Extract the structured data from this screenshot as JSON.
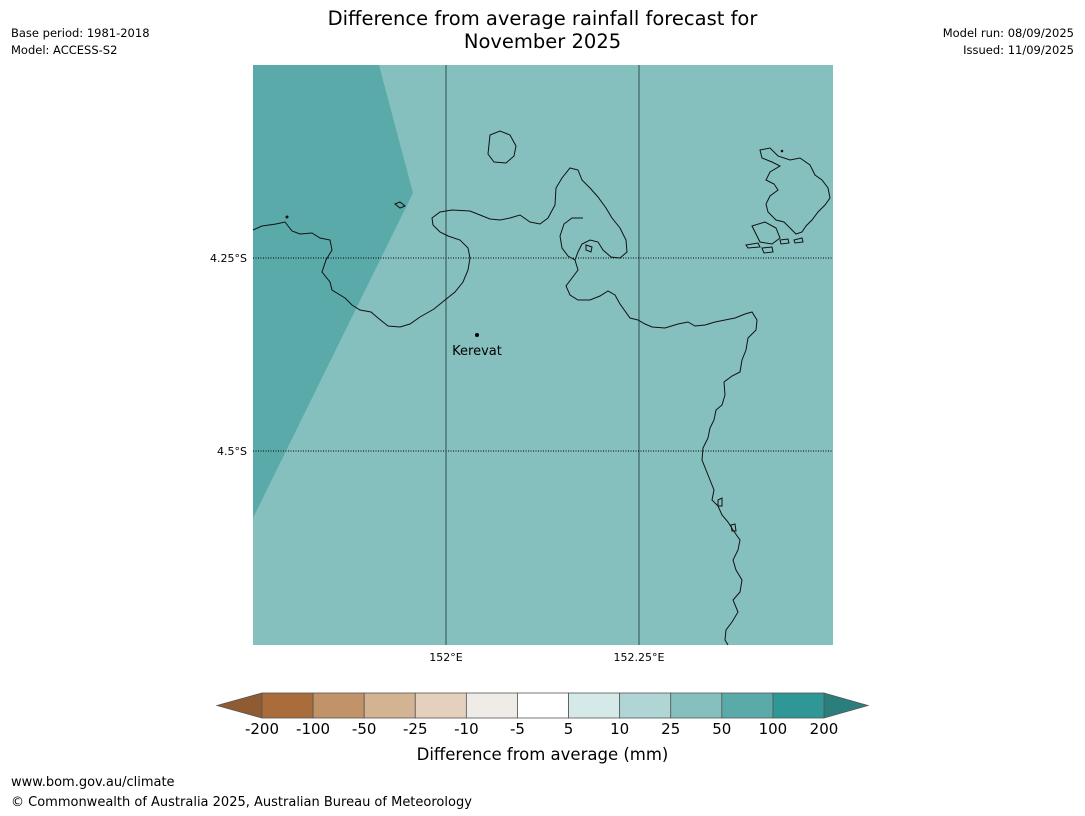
{
  "title": {
    "line1": "Difference from average rainfall forecast for",
    "line2": "November 2025"
  },
  "meta_left": {
    "base_period": "Base period: 1981-2018",
    "model": "Model: ACCESS-S2"
  },
  "meta_right": {
    "model_run": "Model run: 08/09/2025",
    "issued": "Issued: 11/09/2025"
  },
  "map": {
    "place_label": "Kerevat",
    "lat_ticks": [
      "4.25°S",
      "4.5°S"
    ],
    "lon_ticks": [
      "152°E",
      "152.25°E"
    ],
    "colors": {
      "class_25_50": "#85c0bf",
      "class_50_100": "#5aaaaa"
    }
  },
  "colorbar": {
    "label": "Difference from average (mm)",
    "ticks": [
      "-200",
      "-100",
      "-50",
      "-25",
      "-10",
      "-5",
      "5",
      "10",
      "25",
      "50",
      "100",
      "200"
    ],
    "colors": [
      "#a96c3a",
      "#c29268",
      "#d3b392",
      "#e4d0bd",
      "#efebe7",
      "#ffffff",
      "#d6e9e9",
      "#afd6d5",
      "#85c0bf",
      "#5aaaaa",
      "#2f9795"
    ],
    "under_color": "#8f5b32",
    "over_color": "#2a7f7d"
  },
  "footer": {
    "url": "www.bom.gov.au/climate",
    "copyright": "© Commonwealth of Australia 2025, Australian Bureau of Meteorology"
  }
}
